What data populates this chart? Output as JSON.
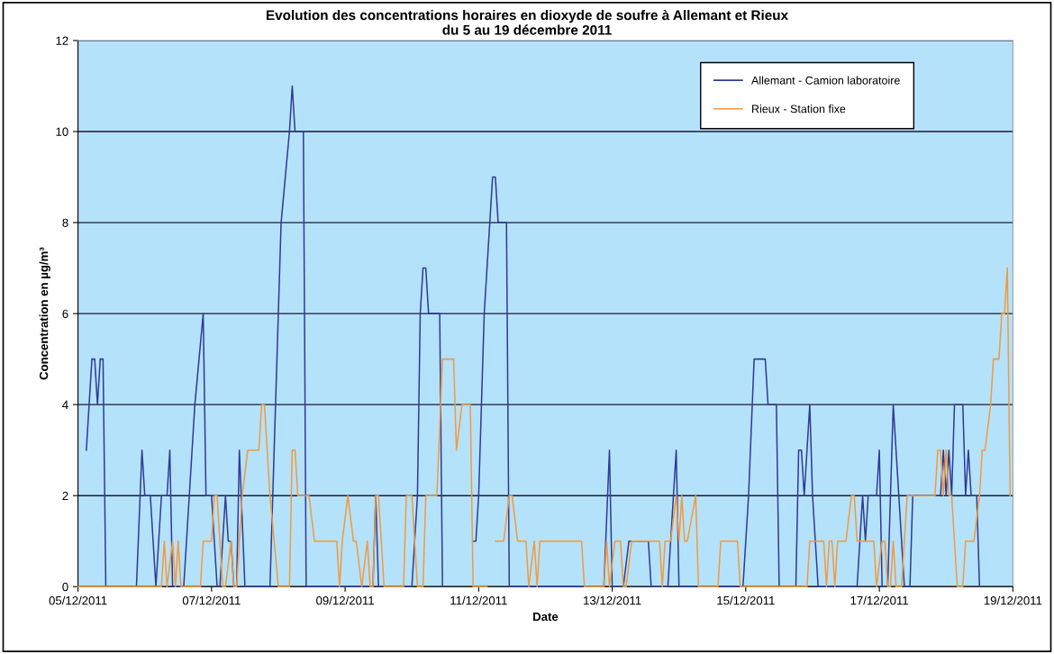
{
  "chart_data": {
    "type": "line",
    "title": "Evolution des concentrations horaires en dioxyde de soufre à Allemant et Rieux\ndu 5 au 19 décembre 2011",
    "xlabel": "Date",
    "ylabel": "Concentration en µg/m³",
    "xlim": [
      "2011-12-05",
      "2011-12-19"
    ],
    "xticks": [
      {
        "value": "2011-12-05",
        "label": "05/12/2011"
      },
      {
        "value": "2011-12-07",
        "label": "07/12/2011"
      },
      {
        "value": "2011-12-09",
        "label": "09/12/2011"
      },
      {
        "value": "2011-12-11",
        "label": "11/12/2011"
      },
      {
        "value": "2011-12-13",
        "label": "13/12/2011"
      },
      {
        "value": "2011-12-15",
        "label": "15/12/2011"
      },
      {
        "value": "2011-12-17",
        "label": "17/12/2011"
      },
      {
        "value": "2011-12-19",
        "label": "19/12/2011"
      }
    ],
    "ylim": [
      0,
      12
    ],
    "yticks": [
      0,
      2,
      4,
      6,
      8,
      10,
      12
    ],
    "grid": "y",
    "legend": "top right",
    "marker": "none",
    "line_style": "solid",
    "series": [
      {
        "name": "Allemant - Camion laboratoire",
        "color": "#2e3d98",
        "x": [
          "2011-12-05T03:00",
          "2011-12-05T05:00",
          "2011-12-05T06:00",
          "2011-12-05T07:00",
          "2011-12-05T08:00",
          "2011-12-05T09:00",
          "2011-12-05T10:00",
          "2011-12-05T21:00",
          "2011-12-05T23:00",
          "2011-12-06T00:00",
          "2011-12-06T02:00",
          "2011-12-06T04:00",
          "2011-12-06T06:00",
          "2011-12-06T08:00",
          "2011-12-06T09:00",
          "2011-12-06T10:00",
          "2011-12-06T14:00",
          "2011-12-06T18:00",
          "2011-12-06T21:00",
          "2011-12-06T22:00",
          "2011-12-07T00:00",
          "2011-12-07T02:00",
          "2011-12-07T03:00",
          "2011-12-07T05:00",
          "2011-12-07T06:00",
          "2011-12-07T07:00",
          "2011-12-07T08:00",
          "2011-12-07T09:00",
          "2011-12-07T10:00",
          "2011-12-07T12:00",
          "2011-12-07T21:00",
          "2011-12-08T01:00",
          "2011-12-08T04:00",
          "2011-12-08T05:00",
          "2011-12-08T06:00",
          "2011-12-08T09:00",
          "2011-12-08T10:00",
          "2011-12-09T10:00",
          "2011-12-09T11:00",
          "2011-12-09T12:00",
          "2011-12-10T00:00",
          "2011-12-10T02:00",
          "2011-12-10T03:00",
          "2011-12-10T04:00",
          "2011-12-10T05:00",
          "2011-12-10T06:00",
          "2011-12-10T10:00",
          "2011-12-10T11:00",
          "2011-12-10T17:00",
          "2011-12-10T22:00",
          "2011-12-10T23:00",
          "2011-12-11T00:00",
          "2011-12-11T02:00",
          "2011-12-11T04:00",
          "2011-12-11T05:00",
          "2011-12-11T06:00",
          "2011-12-11T07:00",
          "2011-12-11T10:00",
          "2011-12-11T11:00",
          "2011-12-12T21:00",
          "2011-12-12T23:00",
          "2011-12-13T00:00",
          "2011-12-13T04:00",
          "2011-12-13T06:00",
          "2011-12-13T13:00",
          "2011-12-13T14:00",
          "2011-12-13T20:00",
          "2011-12-13T22:00",
          "2011-12-13T23:00",
          "2011-12-14T00:00",
          "2011-12-14T23:00",
          "2011-12-15T01:00",
          "2011-12-15T03:00",
          "2011-12-15T07:00",
          "2011-12-15T08:00",
          "2011-12-15T11:00",
          "2011-12-15T12:00",
          "2011-12-15T18:00",
          "2011-12-15T19:00",
          "2011-12-15T20:00",
          "2011-12-15T21:00",
          "2011-12-15T23:00",
          "2011-12-16T00:00",
          "2011-12-16T01:00",
          "2011-12-16T02:00",
          "2011-12-16T16:00",
          "2011-12-16T17:00",
          "2011-12-16T18:00",
          "2011-12-16T19:00",
          "2011-12-16T20:00",
          "2011-12-16T23:00",
          "2011-12-17T00:00",
          "2011-12-17T01:00",
          "2011-12-17T03:00",
          "2011-12-17T05:00",
          "2011-12-17T09:00",
          "2011-12-17T11:00",
          "2011-12-17T12:00",
          "2011-12-17T22:00",
          "2011-12-17T23:00",
          "2011-12-18T00:00",
          "2011-12-18T01:00",
          "2011-12-18T02:00",
          "2011-12-18T03:00",
          "2011-12-18T06:00",
          "2011-12-18T07:00",
          "2011-12-18T08:00",
          "2011-12-18T09:00",
          "2011-12-18T11:00",
          "2011-12-18T12:00"
        ],
        "values": [
          3,
          5,
          5,
          4,
          5,
          5,
          0,
          0,
          3,
          2,
          2,
          0,
          2,
          2,
          3,
          0,
          0,
          4,
          6,
          2,
          2,
          0,
          0,
          2,
          1,
          1,
          0,
          0,
          3,
          0,
          0,
          8,
          10,
          11,
          10,
          10,
          0,
          0,
          2,
          0,
          0,
          2,
          6,
          7,
          7,
          6,
          6,
          0,
          null,
          1,
          1,
          2,
          6,
          8,
          9,
          9,
          8,
          8,
          0,
          0,
          3,
          0,
          0,
          1,
          1,
          0,
          0,
          2,
          3,
          0,
          0,
          2,
          5,
          5,
          4,
          4,
          0,
          0,
          3,
          3,
          2,
          4,
          2,
          1,
          0,
          0,
          1,
          2,
          1,
          2,
          2,
          3,
          0,
          0,
          4,
          0,
          0,
          2,
          2,
          3,
          2,
          3,
          2,
          4,
          4,
          2,
          3,
          2,
          2,
          0
        ]
      },
      {
        "name": "Rieux - Station fixe",
        "color": "#f39a3c",
        "x": [
          "2011-12-05T00:00",
          "2011-12-06T06:00",
          "2011-12-06T07:00",
          "2011-12-06T08:00",
          "2011-12-06T10:00",
          "2011-12-06T11:00",
          "2011-12-06T12:00",
          "2011-12-06T13:00",
          "2011-12-06T20:00",
          "2011-12-06T21:00",
          "2011-12-07T00:00",
          "2011-12-07T01:00",
          "2011-12-07T02:00",
          "2011-12-07T03:00",
          "2011-12-07T04:00",
          "2011-12-07T05:00",
          "2011-12-07T07:00",
          "2011-12-07T08:00",
          "2011-12-07T09:00",
          "2011-12-07T11:00",
          "2011-12-07T13:00",
          "2011-12-07T17:00",
          "2011-12-07T18:00",
          "2011-12-07T19:00",
          "2011-12-07T21:00",
          "2011-12-08T00:00",
          "2011-12-08T04:00",
          "2011-12-08T05:00",
          "2011-12-08T06:00",
          "2011-12-08T07:00",
          "2011-12-08T11:00",
          "2011-12-08T13:00",
          "2011-12-08T19:00",
          "2011-12-08T21:00",
          "2011-12-08T22:00",
          "2011-12-08T23:00",
          "2011-12-09T01:00",
          "2011-12-09T03:00",
          "2011-12-09T04:00",
          "2011-12-09T06:00",
          "2011-12-09T08:00",
          "2011-12-09T09:00",
          "2011-12-09T10:00",
          "2011-12-09T11:00",
          "2011-12-09T12:00",
          "2011-12-09T14:00",
          "2011-12-09T21:00",
          "2011-12-09T22:00",
          "2011-12-10T00:00",
          "2011-12-10T01:00",
          "2011-12-10T02:00",
          "2011-12-10T04:00",
          "2011-12-10T05:00",
          "2011-12-10T09:00",
          "2011-12-10T11:00",
          "2011-12-10T15:00",
          "2011-12-10T16:00",
          "2011-12-10T18:00",
          "2011-12-10T21:00",
          "2011-12-10T22:00",
          "2011-12-11T03:00",
          "2011-12-11T04:00",
          "2011-12-11T06:00",
          "2011-12-11T09:00",
          "2011-12-11T11:00",
          "2011-12-11T12:00",
          "2011-12-11T14:00",
          "2011-12-11T17:00",
          "2011-12-11T18:00",
          "2011-12-11T20:00",
          "2011-12-11T21:00",
          "2011-12-11T22:00",
          "2011-12-12T13:00",
          "2011-12-12T14:00",
          "2011-12-12T21:00",
          "2011-12-12T22:00",
          "2011-12-12T23:00",
          "2011-12-13T01:00",
          "2011-12-13T03:00",
          "2011-12-13T04:00",
          "2011-12-13T05:00",
          "2011-12-13T07:00",
          "2011-12-13T17:00",
          "2011-12-13T18:00",
          "2011-12-13T19:00",
          "2011-12-13T21:00",
          "2011-12-13T23:00",
          "2011-12-14T00:00",
          "2011-12-14T01:00",
          "2011-12-14T02:00",
          "2011-12-14T03:00",
          "2011-12-14T06:00",
          "2011-12-14T07:00",
          "2011-12-14T14:00",
          "2011-12-14T15:00",
          "2011-12-14T21:00",
          "2011-12-14T22:00",
          "2011-12-15T22:00",
          "2011-12-15T23:00",
          "2011-12-16T04:00",
          "2011-12-16T05:00",
          "2011-12-16T06:00",
          "2011-12-16T07:00",
          "2011-12-16T08:00",
          "2011-12-16T09:00",
          "2011-12-16T12:00",
          "2011-12-16T14:00",
          "2011-12-16T15:00",
          "2011-12-16T16:00",
          "2011-12-16T22:00",
          "2011-12-16T23:00",
          "2011-12-17T01:00",
          "2011-12-17T02:00",
          "2011-12-17T03:00",
          "2011-12-17T04:00",
          "2011-12-17T05:00",
          "2011-12-17T06:00",
          "2011-12-17T08:00",
          "2011-12-17T09:00",
          "2011-12-17T10:00",
          "2011-12-17T20:00",
          "2011-12-17T21:00",
          "2011-12-17T22:00",
          "2011-12-17T23:00",
          "2011-12-18T00:00",
          "2011-12-18T01:00",
          "2011-12-18T02:00",
          "2011-12-18T04:00",
          "2011-12-18T06:00",
          "2011-12-18T07:00",
          "2011-12-18T10:00",
          "2011-12-18T12:00",
          "2011-12-18T13:00",
          "2011-12-18T14:00",
          "2011-12-18T16:00",
          "2011-12-18T17:00",
          "2011-12-18T19:00",
          "2011-12-18T20:00",
          "2011-12-18T21:00",
          "2011-12-18T22:00",
          "2011-12-18T23:00"
        ],
        "values": [
          0,
          0,
          1,
          0,
          1,
          0,
          1,
          0,
          0,
          1,
          1,
          2,
          2,
          1,
          0,
          0,
          1,
          0,
          0,
          2,
          3,
          3,
          4,
          4,
          2,
          0,
          0,
          3,
          3,
          2,
          2,
          1,
          1,
          1,
          0,
          1,
          2,
          1,
          1,
          0,
          1,
          0,
          0,
          2,
          2,
          0,
          0,
          2,
          2,
          1,
          0,
          0,
          2,
          2,
          5,
          5,
          3,
          4,
          4,
          0,
          0,
          null,
          1,
          1,
          2,
          2,
          1,
          1,
          0,
          1,
          0,
          1,
          1,
          0,
          0,
          1,
          0,
          1,
          1,
          0,
          0,
          1,
          1,
          0,
          1,
          1,
          2,
          1,
          2,
          1,
          1,
          2,
          0,
          0,
          1,
          1,
          0,
          0,
          1,
          1,
          0,
          1,
          1,
          0,
          1,
          1,
          2,
          2,
          1,
          1,
          0,
          1,
          1,
          0,
          0,
          1,
          0,
          0,
          1,
          2,
          2,
          3,
          3,
          2,
          3,
          2,
          2,
          0,
          0,
          1,
          1,
          2,
          3,
          3,
          4,
          5,
          5,
          6,
          6,
          7,
          2
        ]
      }
    ]
  }
}
